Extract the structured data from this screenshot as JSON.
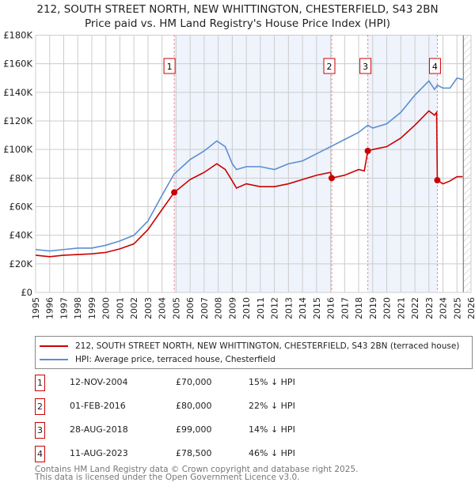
{
  "chart_data": {
    "type": "line",
    "title": "212, SOUTH STREET NORTH, NEW WHITTINGTON, CHESTERFIELD, S43 2BN",
    "subtitle": "Price paid vs. HM Land Registry's House Price Index (HPI)",
    "xlim": [
      1995,
      2026
    ],
    "ylim": [
      0,
      180000
    ],
    "x_ticks": [
      "1995",
      "1996",
      "1997",
      "1998",
      "1999",
      "2000",
      "2001",
      "2002",
      "2003",
      "2004",
      "2005",
      "2006",
      "2007",
      "2008",
      "2009",
      "2010",
      "2011",
      "2012",
      "2013",
      "2014",
      "2015",
      "2016",
      "2017",
      "2018",
      "2019",
      "2020",
      "2021",
      "2022",
      "2023",
      "2024",
      "2025",
      "2026"
    ],
    "y_ticks": [
      {
        "v": 0,
        "label": "£0"
      },
      {
        "v": 20000,
        "label": "£20K"
      },
      {
        "v": 40000,
        "label": "£40K"
      },
      {
        "v": 60000,
        "label": "£60K"
      },
      {
        "v": 80000,
        "label": "£80K"
      },
      {
        "v": 100000,
        "label": "£100K"
      },
      {
        "v": 120000,
        "label": "£120K"
      },
      {
        "v": 140000,
        "label": "£140K"
      },
      {
        "v": 160000,
        "label": "£160K"
      },
      {
        "v": 180000,
        "label": "£180K"
      }
    ],
    "grid": true,
    "series": [
      {
        "name": "212, SOUTH STREET NORTH, NEW WHITTINGTON, CHESTERFIELD, S43 2BN (terraced house)",
        "color": "#cc0000",
        "x": [
          1995,
          1996,
          1997,
          1998,
          1999,
          2000,
          2001,
          2002,
          2003,
          2004,
          2004.87,
          2005,
          2006,
          2007,
          2007.9,
          2008.5,
          2009,
          2009.3,
          2010,
          2011,
          2012,
          2013,
          2014,
          2015,
          2016,
          2016.08,
          2017,
          2018,
          2018.4,
          2018.65,
          2019,
          2020,
          2021,
          2022,
          2023,
          2023.4,
          2023.55,
          2023.6,
          2024,
          2024.5,
          2025,
          2025.4
        ],
        "y": [
          26000,
          25000,
          26000,
          26500,
          27000,
          28000,
          30500,
          34000,
          44000,
          58000,
          70000,
          71000,
          79000,
          84000,
          90000,
          86000,
          78000,
          73000,
          76000,
          74000,
          74000,
          76000,
          79000,
          82000,
          84000,
          80000,
          82000,
          86000,
          85000,
          99000,
          100000,
          102000,
          108000,
          117000,
          127000,
          124000,
          126000,
          78500,
          76000,
          78000,
          81000,
          81000
        ]
      },
      {
        "name": "HPI: Average price, terraced house, Chesterfield",
        "color": "#5b8fd0",
        "x": [
          1995,
          1996,
          1997,
          1998,
          1999,
          2000,
          2001,
          2002,
          2003,
          2004,
          2004.87,
          2005,
          2006,
          2007,
          2007.9,
          2008.5,
          2009,
          2009.3,
          2010,
          2011,
          2012,
          2013,
          2014,
          2015,
          2016,
          2017,
          2018,
          2018.65,
          2019,
          2020,
          2021,
          2022,
          2023,
          2023.4,
          2023.6,
          2024,
          2024.5,
          2025,
          2025.4
        ],
        "y": [
          30000,
          29000,
          30000,
          31000,
          31000,
          33000,
          36000,
          40000,
          50000,
          68000,
          83000,
          84000,
          93000,
          99000,
          106000,
          102000,
          90000,
          86000,
          88000,
          88000,
          86000,
          90000,
          92000,
          97000,
          102000,
          107000,
          112000,
          117000,
          115000,
          118000,
          126000,
          138000,
          148000,
          142000,
          145000,
          143000,
          143000,
          150000,
          149000
        ]
      }
    ],
    "sales": [
      {
        "n": "1",
        "x": 2004.87,
        "y": 70000,
        "date": "12-NOV-2004",
        "price": "£70,000",
        "hpi": "15% ↓ HPI"
      },
      {
        "n": "2",
        "x": 2016.08,
        "y": 80000,
        "date": "01-FEB-2016",
        "price": "£80,000",
        "hpi": "22% ↓ HPI"
      },
      {
        "n": "3",
        "x": 2018.65,
        "y": 99000,
        "date": "28-AUG-2018",
        "price": "£99,000",
        "hpi": "14% ↓ HPI"
      },
      {
        "n": "4",
        "x": 2023.6,
        "y": 78500,
        "date": "11-AUG-2023",
        "price": "£78,500",
        "hpi": "46% ↓ HPI"
      }
    ],
    "shaded_ranges": [
      [
        2004.87,
        2016.08
      ],
      [
        2018.65,
        2023.6
      ]
    ],
    "forecast_from": 2025.45
  },
  "footer": {
    "line1": "Contains HM Land Registry data © Crown copyright and database right 2025.",
    "line2": "This data is licensed under the Open Government Licence v3.0."
  }
}
